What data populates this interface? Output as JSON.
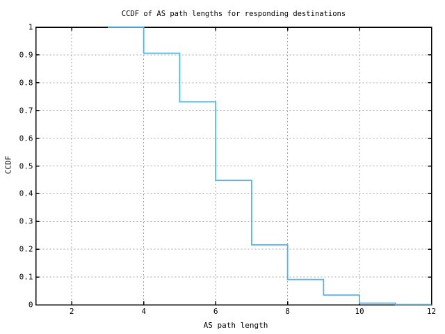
{
  "window": {
    "background": "#ffffff"
  },
  "chart_data": {
    "type": "line",
    "line_style": "step",
    "title": "CCDF of AS path lengths for responding destinations",
    "xlabel": "AS path length",
    "ylabel": "CCDF",
    "xlim": [
      1,
      12
    ],
    "ylim": [
      0,
      1
    ],
    "xticks": [
      2,
      4,
      6,
      8,
      10,
      12
    ],
    "ytick_values": [
      0,
      0.1,
      0.2,
      0.3,
      0.4,
      0.5,
      0.6,
      0.7,
      0.8,
      0.9,
      1
    ],
    "ytick_labels": [
      "0",
      "0.1",
      "0.2",
      "0.3",
      "0.4",
      "0.5",
      "0.6",
      "0.7",
      "0.8",
      "0.9",
      "1"
    ],
    "grid": true,
    "legend": false,
    "colors": {
      "line": "#56b4e9",
      "grid": "#a3a3a3",
      "axis": "#000000",
      "text": "#000000"
    },
    "steps_note": "each point gives the CCDF level holding from its x until the next x",
    "steps": [
      {
        "x": 3,
        "ccdf": 1.0
      },
      {
        "x": 4,
        "ccdf": 0.906
      },
      {
        "x": 5,
        "ccdf": 0.731
      },
      {
        "x": 6,
        "ccdf": 0.448
      },
      {
        "x": 7,
        "ccdf": 0.216
      },
      {
        "x": 8,
        "ccdf": 0.091
      },
      {
        "x": 9,
        "ccdf": 0.035
      },
      {
        "x": 10,
        "ccdf": 0.006
      },
      {
        "x": 11,
        "ccdf": 0.001
      },
      {
        "x": 12,
        "ccdf": 0.001
      }
    ]
  }
}
